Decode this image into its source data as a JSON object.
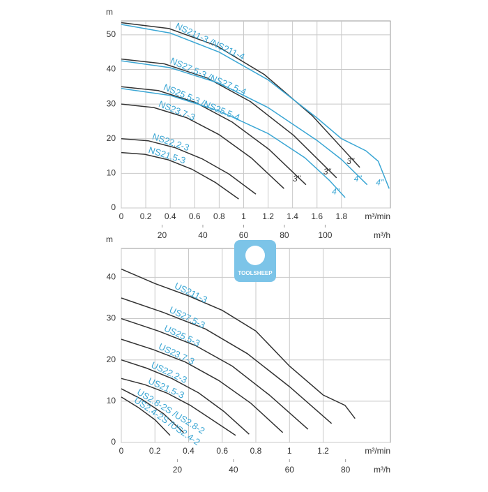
{
  "watermark": "TOOLSHEEP",
  "chart_data": [
    {
      "type": "line",
      "ylabel": "m",
      "xlabel": "m³/min",
      "x2label": "m³/h",
      "xlim": [
        0,
        2.2
      ],
      "xticks": [
        0,
        0.2,
        0.4,
        0.6,
        0.8,
        1,
        1.2,
        1.4,
        1.6,
        1.8
      ],
      "x2lim": [
        0,
        132
      ],
      "x2ticks": [
        20,
        40,
        60,
        80,
        100
      ],
      "ylim": [
        0,
        54
      ],
      "yticks": [
        0,
        10,
        20,
        30,
        40,
        50
      ],
      "grid": true,
      "series": [
        {
          "label": "NS211-3 /NS211-4",
          "color": "#333333",
          "end_label": "3\"",
          "x": [
            0,
            0.39,
            0.78,
            1.17,
            1.56,
            1.95
          ],
          "values": [
            53.5,
            51.8,
            46.8,
            38.5,
            26.7,
            11.7
          ]
        },
        {
          "color": "#3aa6d4",
          "end_label": "4\"",
          "x": [
            0,
            0.4,
            0.8,
            1.2,
            1.6,
            1.8,
            2.0,
            2.1,
            2.19
          ],
          "values": [
            53,
            50.5,
            45,
            37,
            26,
            20,
            16.5,
            13.5,
            5.6
          ]
        },
        {
          "label": "NS27.5-3 /NS27.5-4",
          "color": "#333333",
          "end_label": "3\"",
          "x": [
            0,
            0.352,
            0.704,
            1.056,
            1.408,
            1.76
          ],
          "values": [
            43,
            41.6,
            37.5,
            30.7,
            21,
            8.7
          ]
        },
        {
          "color": "#3aa6d4",
          "end_label": "4\"",
          "x": [
            0,
            0.4,
            0.8,
            1.2,
            1.6,
            1.8,
            2.01
          ],
          "values": [
            42.5,
            40.5,
            36,
            29,
            19.5,
            14,
            6.7
          ]
        },
        {
          "label": "NS25.5-3 /NS25.5-4",
          "color": "#333333",
          "end_label": "3\"",
          "x": [
            0,
            0.302,
            0.604,
            0.906,
            1.208,
            1.51
          ],
          "values": [
            35,
            33.9,
            30.5,
            24.8,
            16.9,
            6.7
          ]
        },
        {
          "color": "#3aa6d4",
          "end_label": "4\"",
          "x": [
            0,
            0.4,
            0.8,
            1.2,
            1.5,
            1.7,
            1.83
          ],
          "values": [
            34.5,
            32.5,
            28,
            21.5,
            14.5,
            8,
            3
          ]
        },
        {
          "label": "NS23.7-3",
          "color": "#333333",
          "x": [
            0,
            0.266,
            0.532,
            0.798,
            1.064,
            1.33
          ],
          "values": [
            30,
            29,
            26.1,
            21.2,
            14.4,
            5.6
          ]
        },
        {
          "label": "NS22.2-3",
          "color": "#333333",
          "x": [
            0,
            0.22,
            0.44,
            0.66,
            0.88,
            1.1
          ],
          "values": [
            20,
            19.4,
            17.4,
            14.2,
            9.8,
            4
          ]
        },
        {
          "label": "NS21.5-3",
          "color": "#333333",
          "x": [
            0,
            0.192,
            0.384,
            0.576,
            0.768,
            0.96
          ],
          "values": [
            16,
            15.5,
            13.9,
            11.2,
            7.4,
            2.6
          ]
        }
      ]
    },
    {
      "type": "line",
      "ylabel": "m",
      "xlabel": "m³/min",
      "x2label": "m³/h",
      "xlim": [
        0,
        1.6
      ],
      "xticks": [
        0,
        0.2,
        0.4,
        0.6,
        0.8,
        1,
        1.2
      ],
      "x2lim": [
        0,
        96
      ],
      "x2ticks": [
        20,
        40,
        60,
        80
      ],
      "ylim": [
        0,
        47
      ],
      "yticks": [
        0,
        10,
        20,
        30,
        40
      ],
      "grid": true,
      "series": [
        {
          "label": "US211-3",
          "color": "#333333",
          "x": [
            0,
            0.2,
            0.4,
            0.6,
            0.8,
            1.0,
            1.2,
            1.33,
            1.39
          ],
          "values": [
            42,
            38.5,
            35.5,
            32,
            27,
            18.5,
            11.5,
            9,
            5.8
          ]
        },
        {
          "label": "US27.5-3",
          "color": "#333333",
          "x": [
            0,
            0.25,
            0.5,
            0.75,
            1.0,
            1.25
          ],
          "values": [
            35,
            31.5,
            27.5,
            21.5,
            13.5,
            4.6
          ]
        },
        {
          "label": "US25.5-3",
          "color": "#333333",
          "x": [
            0,
            0.22,
            0.44,
            0.66,
            0.88,
            1.11
          ],
          "values": [
            30,
            27,
            23.5,
            18.5,
            11.5,
            3.2
          ]
        },
        {
          "label": "US23.7-3",
          "color": "#333333",
          "x": [
            0,
            0.19,
            0.38,
            0.58,
            0.77,
            0.96
          ],
          "values": [
            25,
            22.5,
            19.5,
            15,
            9.5,
            2.4
          ]
        },
        {
          "label": "US22.2-3",
          "color": "#333333",
          "x": [
            0,
            0.15,
            0.3,
            0.46,
            0.61,
            0.76
          ],
          "values": [
            20,
            18,
            15.5,
            12,
            7.5,
            2
          ]
        },
        {
          "label": "US21.5-3",
          "color": "#333333",
          "x": [
            0,
            0.14,
            0.27,
            0.41,
            0.54,
            0.68
          ],
          "values": [
            15.5,
            14,
            12,
            9,
            5.5,
            1.7
          ]
        },
        {
          "label": "US2.8-2S /US2.8-2",
          "color": "#333333",
          "x": [
            0,
            0.12,
            0.25,
            0.37
          ],
          "values": [
            13,
            10.5,
            7,
            2.4
          ]
        },
        {
          "label": "US2.4-2S /US2.4-2",
          "color": "#333333",
          "x": [
            0,
            0.1,
            0.2,
            0.29
          ],
          "values": [
            11,
            8.5,
            5.5,
            1.7
          ]
        }
      ]
    }
  ]
}
